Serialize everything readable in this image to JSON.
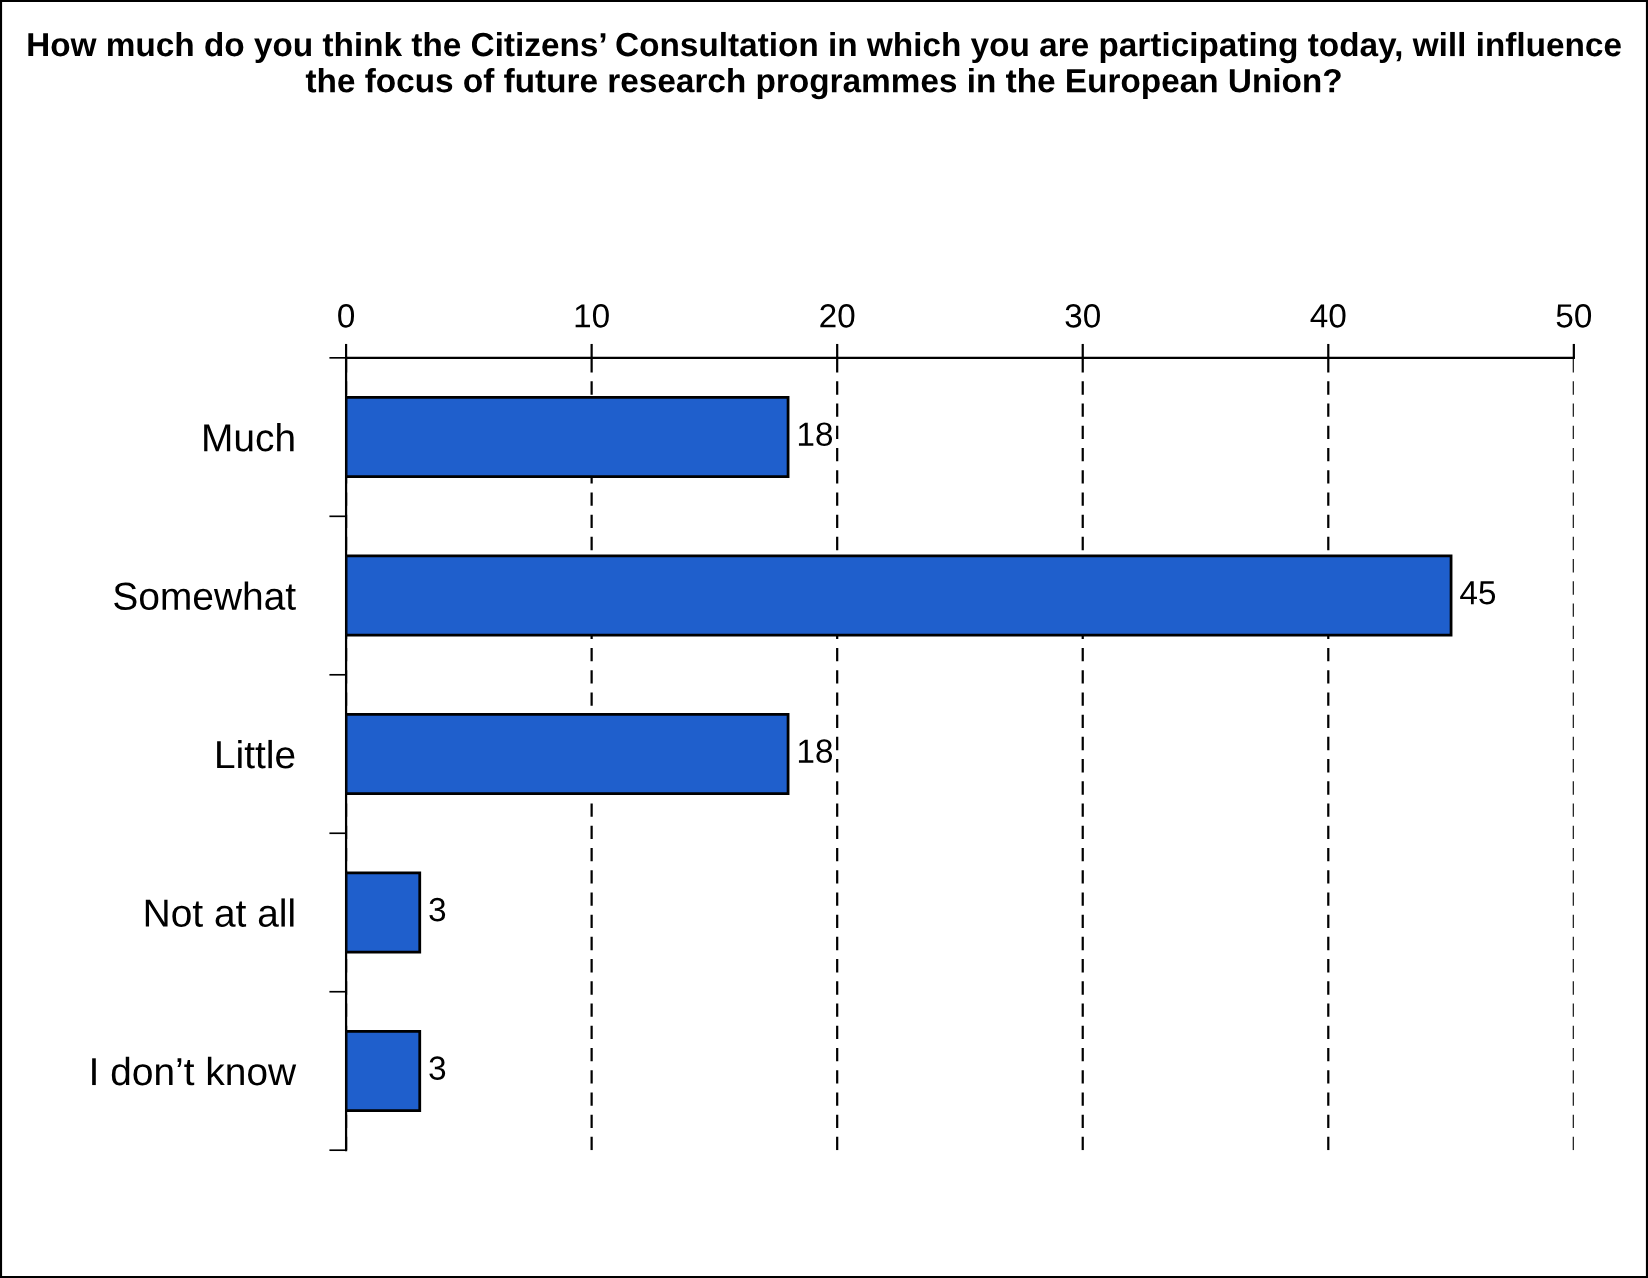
{
  "chart_data": {
    "type": "bar",
    "orientation": "horizontal",
    "title": "How much do you think the Citizens’ Consultation in which you are participating today, will influence the focus of future research programmes in the European Union?",
    "categories": [
      "Much",
      "Somewhat",
      "Little",
      "Not at all",
      "I don’t know"
    ],
    "values": [
      18,
      45,
      18,
      3,
      3
    ],
    "color": "#1f5fcc",
    "xlim": [
      0,
      50
    ],
    "xticks": [
      0,
      10,
      20,
      30,
      40,
      50
    ],
    "grid": "x",
    "data_labels": true
  }
}
